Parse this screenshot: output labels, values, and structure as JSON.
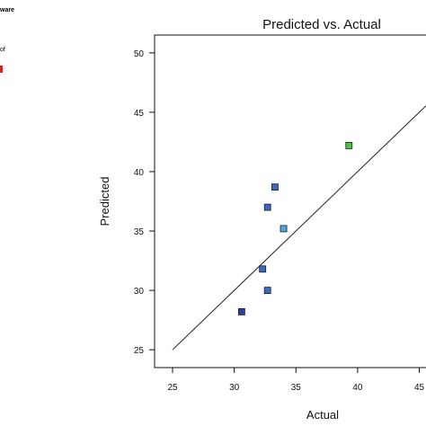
{
  "side_panel": {
    "header_fragment": "ware",
    "line_fragment": "of"
  },
  "colors": {
    "accent_red": "#e02020",
    "point_dark_blue": "#2b3f9c",
    "point_mid_blue": "#3b68c4",
    "point_light_blue": "#49a8e8",
    "point_green": "#3fca3f",
    "line": "#222222"
  },
  "chart_data": {
    "type": "scatter",
    "title": "Predicted vs. Actual",
    "xlabel": "Actual",
    "ylabel": "Predicted",
    "xlim": [
      25,
      47
    ],
    "ylim": [
      23.5,
      51.5
    ],
    "xticks": [
      25,
      30,
      35,
      40,
      45
    ],
    "yticks": [
      25,
      30,
      35,
      40,
      45,
      50
    ],
    "points": [
      {
        "x": 30.6,
        "y": 28.2,
        "color": "#2b3f9c"
      },
      {
        "x": 32.7,
        "y": 30.0,
        "color": "#3b68c4"
      },
      {
        "x": 32.3,
        "y": 31.8,
        "color": "#3b68c4"
      },
      {
        "x": 32.7,
        "y": 37.0,
        "color": "#3b68c4"
      },
      {
        "x": 33.3,
        "y": 38.7,
        "color": "#3b68c4"
      },
      {
        "x": 34.0,
        "y": 35.2,
        "color": "#49a8e8"
      },
      {
        "x": 39.3,
        "y": 42.2,
        "color": "#3fca3f"
      }
    ],
    "reference_line": {
      "from": [
        25,
        25
      ],
      "to": [
        47,
        47
      ]
    },
    "grid": false
  }
}
